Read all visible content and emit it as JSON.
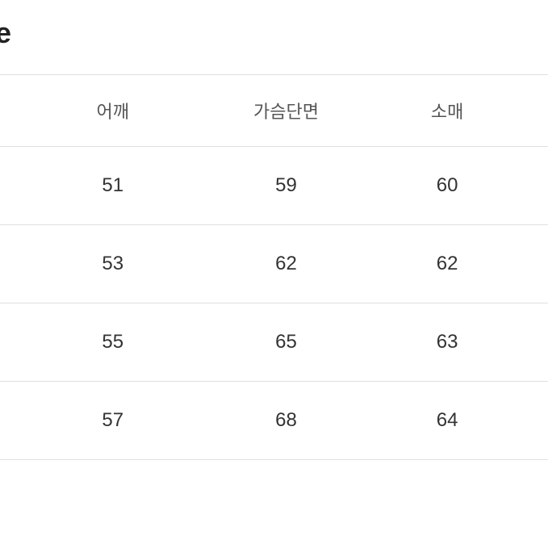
{
  "title": "le",
  "size_table": {
    "type": "table",
    "columns": [
      "어깨",
      "가슴단면",
      "소매"
    ],
    "rows": [
      [
        51,
        59,
        60
      ],
      [
        53,
        62,
        62
      ],
      [
        55,
        65,
        63
      ],
      [
        57,
        68,
        64
      ]
    ],
    "background_color": "#ffffff",
    "border_color": "#e0e0e0",
    "header_text_color": "#555555",
    "cell_text_color": "#333333",
    "title_color": "#222222",
    "header_fontsize": 22,
    "cell_fontsize": 24,
    "title_fontsize": 36
  }
}
